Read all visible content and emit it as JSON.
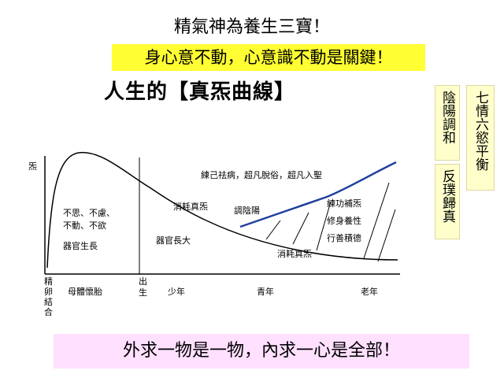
{
  "title": "精氣神為養生三寶！",
  "key_statement": "身心意不動，心意識不動是關鍵！",
  "curve_heading": "人生的【真炁曲線】",
  "side_notes": {
    "yinyang": "陰陽調和",
    "emotions": "七情六慾平衡",
    "return": "反璞歸真"
  },
  "diagram": {
    "y_axis_label": "炁",
    "origin_label": [
      "精",
      "卵",
      "結",
      "合"
    ],
    "birth_label": [
      "出",
      "生"
    ],
    "stages": [
      "母體懷胎",
      "少年",
      "青年",
      "老年"
    ],
    "labels": {
      "prenatal": [
        "不思、不慮、",
        "不動、不欲"
      ],
      "organ_growth": "器官生長",
      "consume_1": "消耗真炁",
      "organ_grown": "器官長大",
      "adjust": "調陰陽",
      "refine": "練己祛病，超凡脫俗，超凡入聖",
      "practice": [
        "練功補炁",
        "修身養性",
        "行善積德"
      ],
      "consume_2": "消耗真炁"
    },
    "colors": {
      "rising_curve": "#1f3f9f",
      "main_curve": "#000000"
    }
  },
  "footer": "外求一物是一物，內求一心是全部！"
}
